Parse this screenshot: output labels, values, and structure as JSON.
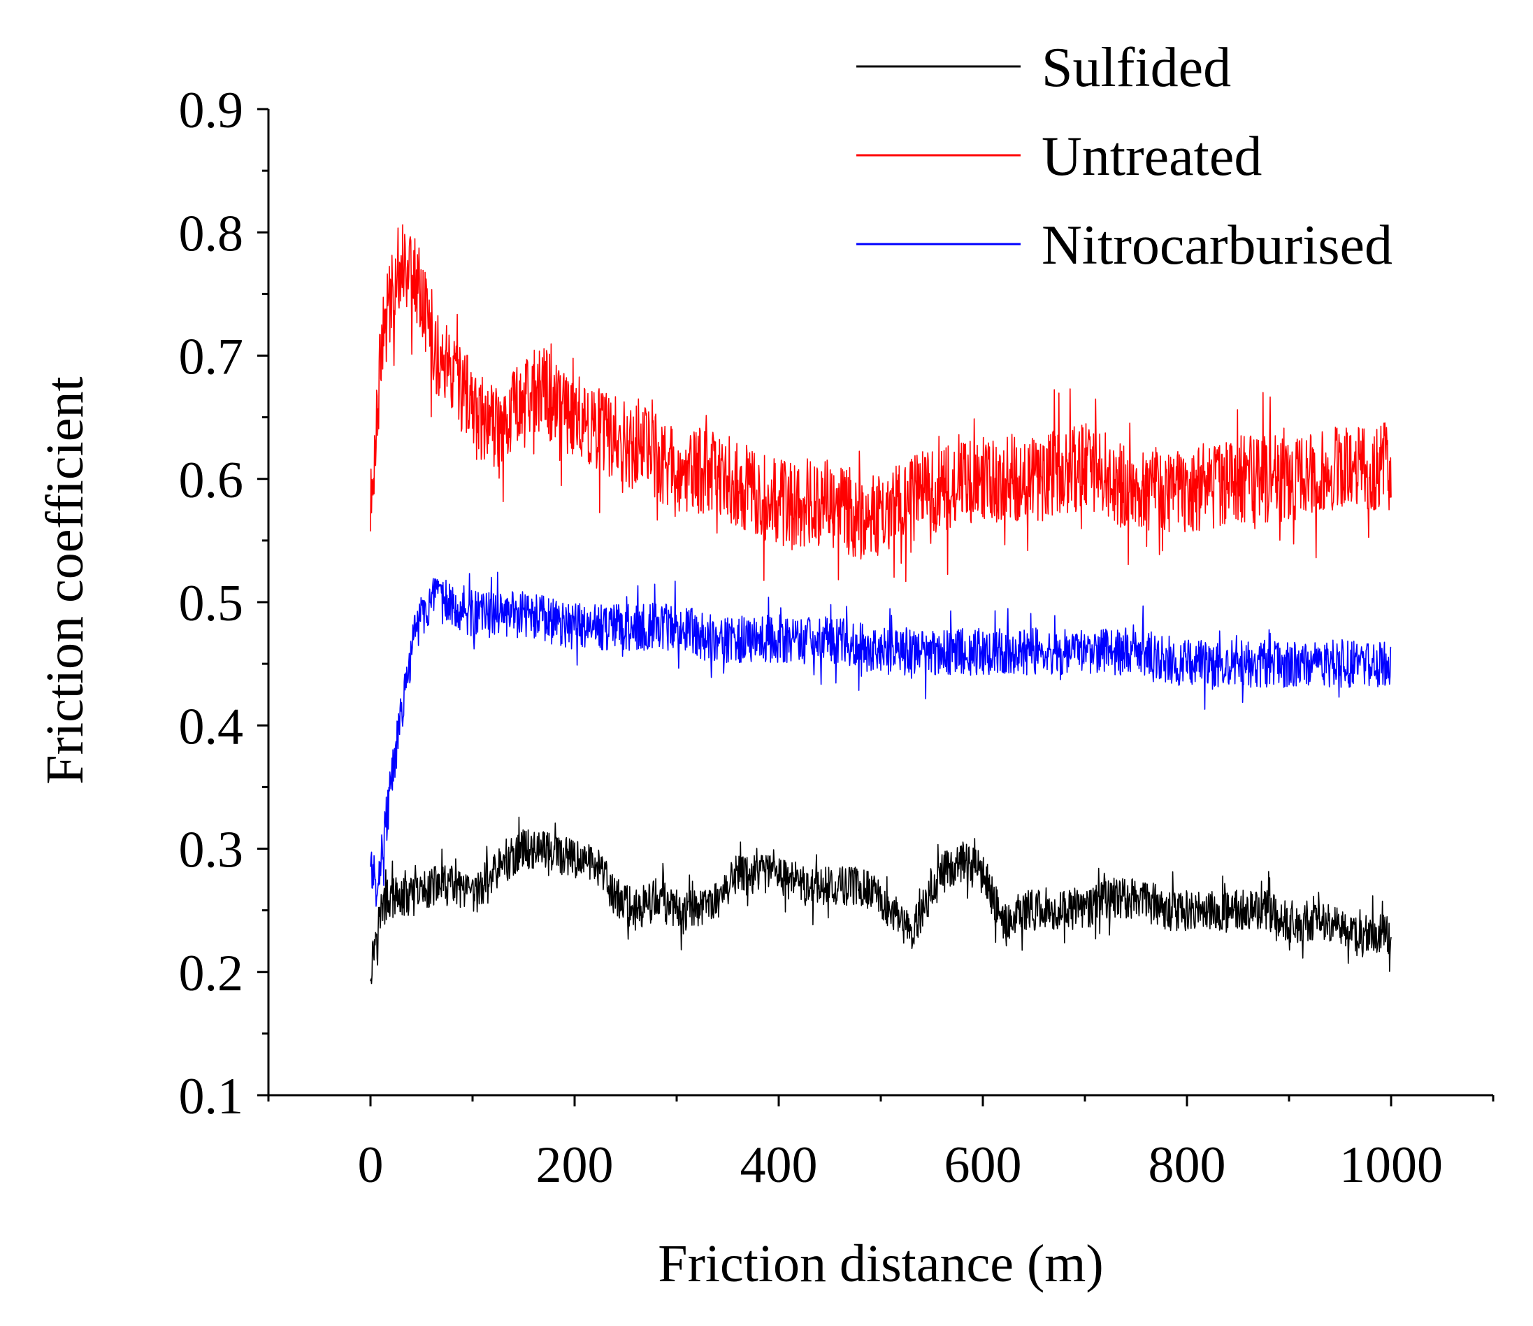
{
  "chart_data": {
    "type": "line",
    "title": "",
    "xlabel": "Friction distance (m)",
    "ylabel": "Friction coefficient",
    "xlim": [
      -100,
      1100
    ],
    "ylim": [
      0.1,
      0.9
    ],
    "xticks": [
      0,
      200,
      400,
      600,
      800,
      1000
    ],
    "xtick_labels": [
      "0",
      "200",
      "400",
      "600",
      "800",
      "1000"
    ],
    "yticks": [
      0.1,
      0.2,
      0.3,
      0.4,
      0.5,
      0.6,
      0.7,
      0.8,
      0.9
    ],
    "ytick_labels": [
      "0.1",
      "0.2",
      "0.3",
      "0.4",
      "0.5",
      "0.6",
      "0.7",
      "0.8",
      "0.9"
    ],
    "grid": false,
    "legend_position": "top-right",
    "series": [
      {
        "name": "Sulfided",
        "color": "#000000",
        "noise": 0.03,
        "x": [
          0,
          5,
          10,
          20,
          40,
          60,
          80,
          100,
          120,
          150,
          170,
          200,
          220,
          240,
          260,
          280,
          300,
          320,
          340,
          360,
          380,
          400,
          420,
          440,
          460,
          480,
          500,
          520,
          530,
          540,
          560,
          580,
          600,
          620,
          640,
          660,
          680,
          700,
          720,
          740,
          760,
          780,
          800,
          820,
          840,
          860,
          880,
          900,
          920,
          940,
          960,
          980,
          1000
        ],
        "values": [
          0.2,
          0.23,
          0.25,
          0.26,
          0.26,
          0.27,
          0.27,
          0.26,
          0.28,
          0.3,
          0.3,
          0.29,
          0.29,
          0.26,
          0.25,
          0.26,
          0.25,
          0.25,
          0.26,
          0.28,
          0.28,
          0.28,
          0.27,
          0.27,
          0.27,
          0.27,
          0.26,
          0.24,
          0.23,
          0.25,
          0.28,
          0.29,
          0.28,
          0.24,
          0.25,
          0.25,
          0.25,
          0.25,
          0.26,
          0.26,
          0.26,
          0.25,
          0.25,
          0.25,
          0.25,
          0.25,
          0.25,
          0.24,
          0.24,
          0.24,
          0.23,
          0.23,
          0.23
        ]
      },
      {
        "name": "Untreated",
        "color": "#ff0000",
        "noise": 0.065,
        "x": [
          0,
          5,
          10,
          20,
          30,
          40,
          50,
          60,
          80,
          100,
          120,
          150,
          170,
          200,
          250,
          300,
          350,
          400,
          450,
          480,
          500,
          520,
          550,
          600,
          650,
          700,
          750,
          800,
          850,
          900,
          950,
          1000
        ],
        "values": [
          0.57,
          0.64,
          0.7,
          0.75,
          0.78,
          0.77,
          0.75,
          0.71,
          0.68,
          0.66,
          0.64,
          0.67,
          0.67,
          0.65,
          0.63,
          0.61,
          0.6,
          0.58,
          0.58,
          0.57,
          0.57,
          0.58,
          0.59,
          0.6,
          0.6,
          0.61,
          0.59,
          0.59,
          0.6,
          0.6,
          0.61,
          0.61
        ]
      },
      {
        "name": "Nitrocarburised",
        "color": "#0000ff",
        "noise": 0.035,
        "x": [
          0,
          5,
          10,
          15,
          20,
          25,
          30,
          35,
          40,
          45,
          50,
          60,
          80,
          100,
          150,
          200,
          250,
          300,
          350,
          400,
          450,
          500,
          550,
          600,
          650,
          700,
          750,
          800,
          850,
          900,
          950,
          1000
        ],
        "values": [
          0.29,
          0.27,
          0.29,
          0.32,
          0.35,
          0.38,
          0.41,
          0.43,
          0.46,
          0.48,
          0.49,
          0.5,
          0.5,
          0.49,
          0.49,
          0.48,
          0.48,
          0.48,
          0.47,
          0.47,
          0.47,
          0.46,
          0.46,
          0.46,
          0.46,
          0.46,
          0.46,
          0.45,
          0.45,
          0.45,
          0.45,
          0.45
        ]
      }
    ]
  }
}
